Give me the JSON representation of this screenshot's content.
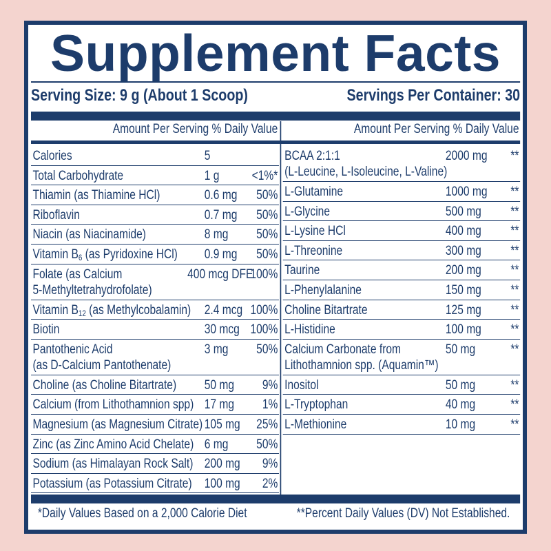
{
  "title": "Supplement Facts",
  "serving_size": "Serving Size: 9 g (About 1 Scoop)",
  "servings_per_container": "Servings Per Container: 30",
  "left_header": "Amount Per Serving  % Daily Value",
  "right_header": "Amount Per Serving  % Daily Value",
  "colors": {
    "navy": "#1d3c6b",
    "background": "#f4d4cf"
  },
  "left_rows": [
    {
      "name": "Calories",
      "amount": "5",
      "dv": ""
    },
    {
      "name": "Total Carbohydrate",
      "amount": "1 g",
      "dv": "<1%*"
    },
    {
      "name": "Thiamin (as Thiamine HCl)",
      "amount": "0.6 mg",
      "dv": "50%"
    },
    {
      "name": "Riboflavin",
      "amount": "0.7 mg",
      "dv": "50%"
    },
    {
      "name": "Niacin (as Niacinamide)",
      "amount": "8 mg",
      "dv": "50%"
    },
    {
      "name": "Vitamin B",
      "sub": "6",
      "name_post": " (as Pyridoxine HCl)",
      "amount": "0.9 mg",
      "dv": "50%"
    },
    {
      "name": "Folate (as Calcium",
      "name2": "5-Methyltetrahydrofolate)",
      "amount": "400 mcg DFE",
      "dv": "100%",
      "amount_shift": true
    },
    {
      "name": "Vitamin B",
      "sub": "12",
      "name_post": " (as Methylcobalamin)",
      "amount": "2.4 mcg",
      "dv": "100%"
    },
    {
      "name": "Biotin",
      "amount": "30 mcg",
      "dv": "100%"
    },
    {
      "name": "Pantothenic Acid",
      "name2": "(as D-Calcium Pantothenate)",
      "amount": "3 mg",
      "dv": "50%"
    },
    {
      "name": "Choline (as Choline Bitartrate)",
      "amount": "50 mg",
      "dv": "9%"
    },
    {
      "name": "Calcium (from Lithothamnion spp)",
      "amount": "17 mg",
      "dv": "1%"
    },
    {
      "name": "Magnesium (as Magnesium Citrate)",
      "amount": "105 mg",
      "dv": "25%"
    },
    {
      "name": "Zinc (as Zinc Amino Acid Chelate)",
      "amount": "6 mg",
      "dv": "50%"
    },
    {
      "name": "Sodium (as Himalayan Rock Salt)",
      "amount": "200 mg",
      "dv": "9%"
    },
    {
      "name": "Potassium (as Potassium Citrate)",
      "amount": "100 mg",
      "dv": "2%"
    }
  ],
  "right_rows": [
    {
      "name": "BCAA 2:1:1",
      "name2": "(L-Leucine, L-Isoleucine, L-Valine)",
      "amount": "2000 mg",
      "dv": "**"
    },
    {
      "name": "L-Glutamine",
      "amount": "1000 mg",
      "dv": "**"
    },
    {
      "name": "L-Glycine",
      "amount": "500 mg",
      "dv": "**"
    },
    {
      "name": "L-Lysine HCl",
      "amount": "400 mg",
      "dv": "**"
    },
    {
      "name": "L-Threonine",
      "amount": "300 mg",
      "dv": "**"
    },
    {
      "name": "Taurine",
      "amount": "200 mg",
      "dv": "**"
    },
    {
      "name": "L-Phenylalanine",
      "amount": "150 mg",
      "dv": "**"
    },
    {
      "name": "Choline Bitartrate",
      "amount": "125 mg",
      "dv": "**"
    },
    {
      "name": "L-Histidine",
      "amount": "100 mg",
      "dv": "**"
    },
    {
      "name": "Calcium Carbonate from",
      "name2": "Lithothamnion spp. (Aquamin™)",
      "amount": "50 mg",
      "dv": "**"
    },
    {
      "name": "Inositol",
      "amount": "50 mg",
      "dv": "**"
    },
    {
      "name": "L-Tryptophan",
      "amount": "40 mg",
      "dv": "**"
    },
    {
      "name": "L-Methionine",
      "amount": "10 mg",
      "dv": "**"
    }
  ],
  "footnote_left": "*Daily Values Based on a 2,000 Calorie Diet",
  "footnote_right": "**Percent Daily Values (DV) Not Established."
}
